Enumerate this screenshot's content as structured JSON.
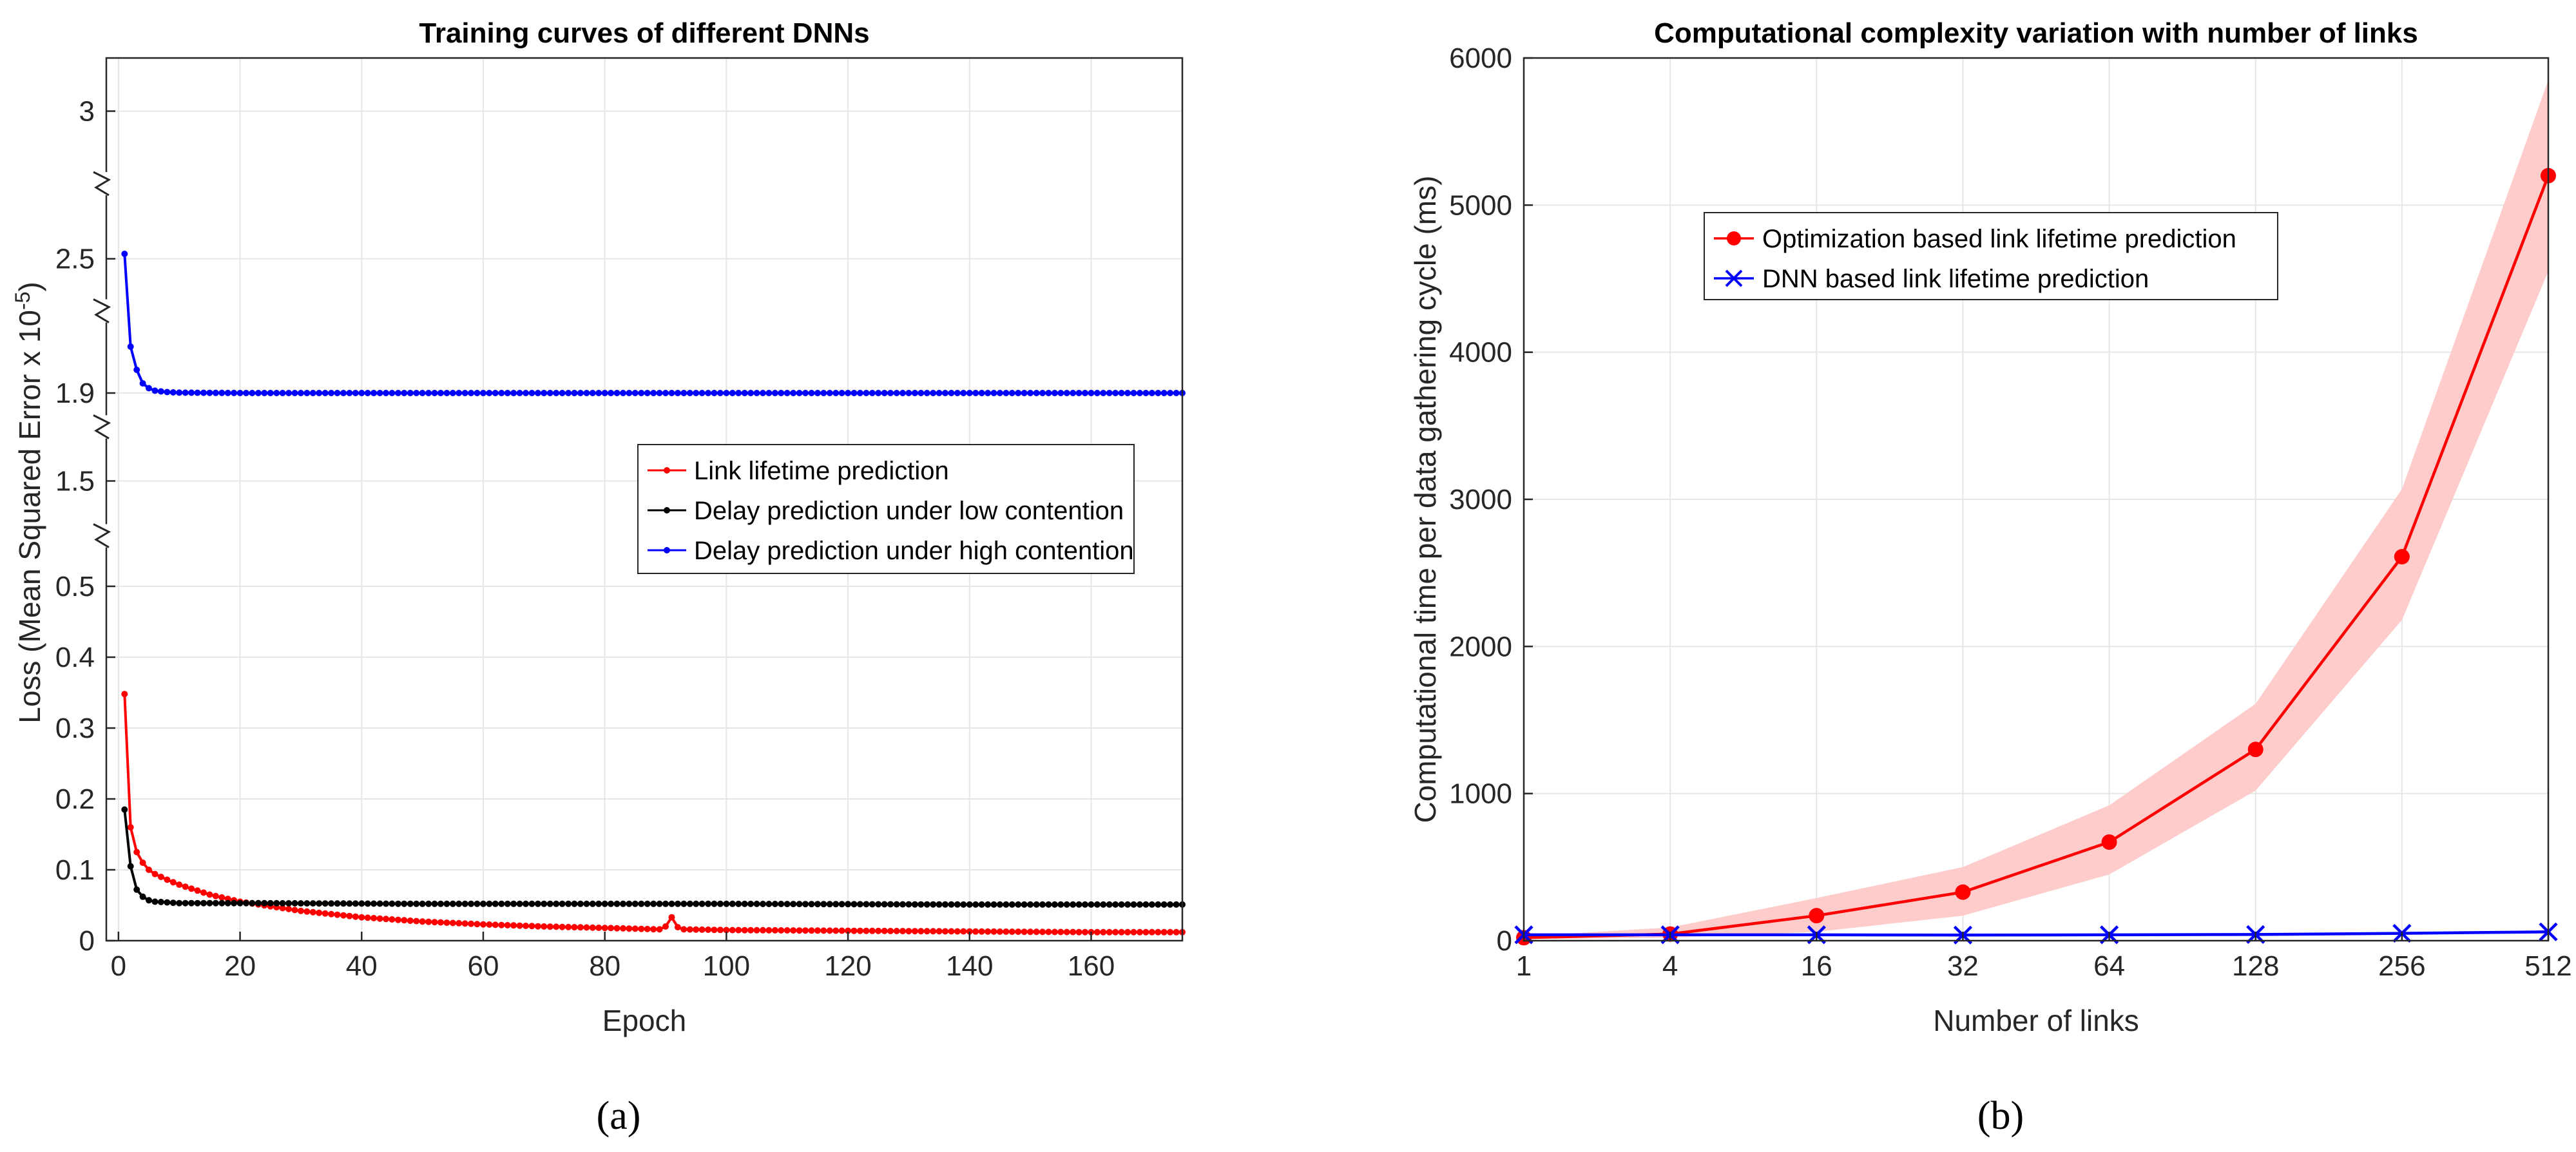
{
  "chart_data": [
    {
      "type": "line",
      "panel_label": "(a)",
      "title": "Training curves of different DNNs",
      "xlabel": "Epoch",
      "ylabel_parts": [
        "Loss (Mean Squared Error x 10",
        "-5",
        ")"
      ],
      "xlim": [
        -2,
        175
      ],
      "x_ticks": [
        0,
        20,
        40,
        60,
        80,
        100,
        120,
        140,
        160
      ],
      "broken_axis": true,
      "y_segments": [
        {
          "range": [
            0,
            0.55
          ],
          "ticks": [
            0,
            0.1,
            0.2,
            0.3,
            0.4,
            0.5
          ],
          "labels": [
            "0",
            "0.1",
            "0.2",
            "0.3",
            "0.4",
            "0.5"
          ]
        },
        {
          "range": [
            1.4,
            1.6
          ],
          "ticks": [
            1.5
          ],
          "labels": [
            "1.5"
          ]
        },
        {
          "range": [
            1.8,
            2.2
          ],
          "ticks": [
            1.9
          ],
          "labels": [
            "1.9"
          ]
        },
        {
          "range": [
            2.4,
            2.7
          ],
          "ticks": [
            2.5
          ],
          "labels": [
            "2.5"
          ]
        },
        {
          "range": [
            2.9,
            3.1
          ],
          "ticks": [
            3
          ],
          "labels": [
            "3"
          ]
        }
      ],
      "legend_position": "center-right",
      "series": [
        {
          "name": "Link lifetime prediction",
          "color": "#ff0000",
          "segment": 0,
          "points": [
            [
              1,
              0.348
            ],
            [
              2,
              0.16
            ],
            [
              3,
              0.125
            ],
            [
              4,
              0.11
            ],
            [
              5,
              0.1
            ],
            [
              6,
              0.094
            ],
            [
              8,
              0.086
            ],
            [
              10,
              0.079
            ],
            [
              15,
              0.065
            ],
            [
              20,
              0.055
            ],
            [
              30,
              0.042
            ],
            [
              40,
              0.033
            ],
            [
              50,
              0.027
            ],
            [
              60,
              0.023
            ],
            [
              70,
              0.02
            ],
            [
              80,
              0.018
            ],
            [
              89,
              0.016
            ],
            [
              90,
              0.02
            ],
            [
              91,
              0.033
            ],
            [
              92,
              0.019
            ],
            [
              93,
              0.016
            ],
            [
              100,
              0.015
            ],
            [
              120,
              0.014
            ],
            [
              140,
              0.013
            ],
            [
              160,
              0.012
            ],
            [
              175,
              0.012
            ]
          ]
        },
        {
          "name": "Delay prediction under low contention",
          "color": "#000000",
          "segment": 0,
          "points": [
            [
              1,
              0.185
            ],
            [
              2,
              0.105
            ],
            [
              3,
              0.072
            ],
            [
              4,
              0.062
            ],
            [
              5,
              0.057
            ],
            [
              6,
              0.055
            ],
            [
              8,
              0.054
            ],
            [
              10,
              0.053
            ],
            [
              20,
              0.053
            ],
            [
              50,
              0.052
            ],
            [
              100,
              0.052
            ],
            [
              140,
              0.051
            ],
            [
              175,
              0.051
            ]
          ]
        },
        {
          "name": "Delay prediction under high contention",
          "color": "#0000ff",
          "segment": 2,
          "points": [
            [
              1,
              2.62
            ],
            [
              2,
              2.14
            ],
            [
              3,
              2.02
            ],
            [
              4,
              1.95
            ],
            [
              5,
              1.925
            ],
            [
              6,
              1.912
            ],
            [
              8,
              1.905
            ],
            [
              10,
              1.902
            ],
            [
              20,
              1.9
            ],
            [
              50,
              1.9
            ],
            [
              100,
              1.9
            ],
            [
              175,
              1.9
            ]
          ]
        }
      ]
    },
    {
      "type": "line",
      "panel_label": "(b)",
      "title": "Computational complexity variation with number of links",
      "xlabel": "Number of links",
      "ylabel": "Computational time per data gathering cycle (ms)",
      "categories": [
        "1",
        "4",
        "16",
        "32",
        "64",
        "128",
        "256",
        "512"
      ],
      "ylim": [
        0,
        6000
      ],
      "y_ticks": [
        0,
        1000,
        2000,
        3000,
        4000,
        5000,
        6000
      ],
      "legend_position": "upper-left",
      "series": [
        {
          "name": "Optimization based link lifetime prediction",
          "color": "#ff0000",
          "marker": "circle",
          "values": [
            20,
            45,
            170,
            330,
            670,
            1300,
            2610,
            5200
          ],
          "band_low": [
            10,
            20,
            60,
            170,
            450,
            1020,
            2180,
            4550
          ],
          "band_high": [
            30,
            90,
            290,
            500,
            920,
            1610,
            3070,
            5850
          ],
          "band_color": "#ffcccc"
        },
        {
          "name": "DNN based link lifetime prediction",
          "color": "#0000ff",
          "marker": "x",
          "values": [
            40,
            40,
            40,
            38,
            40,
            42,
            50,
            60
          ]
        }
      ]
    }
  ]
}
